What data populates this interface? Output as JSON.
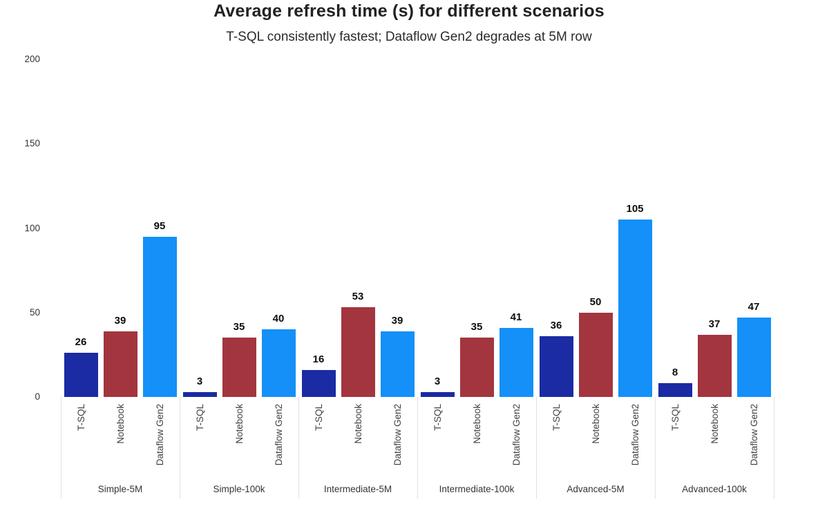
{
  "chart": {
    "title": "Average refresh time (s) for different scenarios",
    "subtitle": "T-SQL consistently fastest; Dataflow Gen2 degrades at 5M row"
  },
  "chart_data": {
    "type": "bar",
    "title": "Average refresh time (s) for different scenarios",
    "subtitle": "T-SQL consistently fastest; Dataflow Gen2 degrades at 5M row",
    "categories": [
      "Simple-5M",
      "Simple-100k",
      "Intermediate-5M",
      "Intermediate-100k",
      "Advanced-5M",
      "Advanced-100k"
    ],
    "series": [
      {
        "name": "T-SQL",
        "color": "#1A2BA3",
        "values": [
          26,
          3,
          16,
          3,
          36,
          8
        ]
      },
      {
        "name": "Notebook",
        "color": "#A3353F",
        "values": [
          39,
          35,
          53,
          35,
          50,
          37
        ]
      },
      {
        "name": "Dataflow Gen2",
        "color": "#1490F8",
        "values": [
          95,
          40,
          39,
          41,
          105,
          47
        ]
      }
    ],
    "xlabel": "",
    "ylabel": "",
    "ylim": [
      0,
      200
    ],
    "yticks": [
      0,
      50,
      100,
      150,
      200
    ],
    "grid": false,
    "legend_position": "none",
    "bar_label_color": "#0d0d0d",
    "tick_label_color": "#333333",
    "separator_color": "#c4c4c4"
  }
}
